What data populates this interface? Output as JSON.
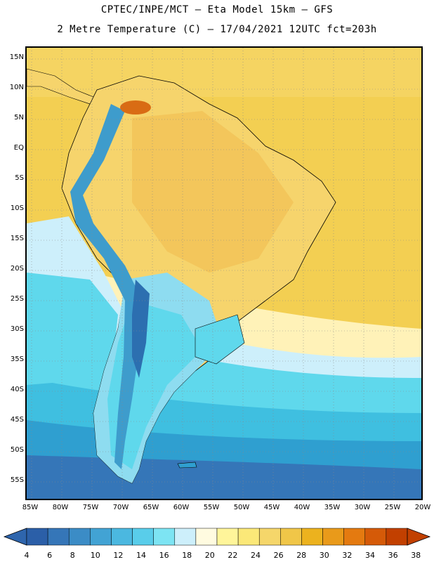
{
  "header": {
    "title_line1": "CPTEC/INPE/MCT –  Eta Model 15km – GFS",
    "title_line2": "2 Metre Temperature (C) – 17/04/2021 12UTC fct=203h"
  },
  "map": {
    "lat_labels": [
      "15N",
      "10N",
      "5N",
      "EQ",
      "5S",
      "10S",
      "15S",
      "20S",
      "25S",
      "30S",
      "35S",
      "40S",
      "45S",
      "50S",
      "55S"
    ],
    "lon_labels": [
      "85W",
      "80W",
      "75W",
      "70W",
      "65W",
      "60W",
      "55W",
      "50W",
      "45W",
      "40W",
      "35W",
      "30W",
      "25W",
      "20W"
    ],
    "colors": {
      "ocean_warm": "#f3cf52",
      "ocean_hot": "#f5d66a",
      "ocean_mild": "#fff2b8",
      "ocean_cool": "#cdeffb",
      "ocean_cold1": "#5fd8ec",
      "ocean_cold2": "#3fbfe0",
      "ocean_cold3": "#2f9fd0",
      "ocean_cold4": "#3576b8",
      "land_warm": "#f6d46c",
      "land_hot": "#efb74a",
      "land_cool": "#8edcf0",
      "andes": "#3e9ccc",
      "andes_high": "#2c6fb0",
      "hotspot": "#d96c14"
    }
  },
  "colorbar": {
    "values": [
      "4",
      "6",
      "8",
      "10",
      "12",
      "14",
      "16",
      "18",
      "20",
      "22",
      "24",
      "26",
      "28",
      "30",
      "32",
      "34",
      "36",
      "38"
    ],
    "colors": [
      "#2b5fa8",
      "#3576b8",
      "#3b8cc6",
      "#42a3d4",
      "#4bb8e0",
      "#59cdea",
      "#7de4f3",
      "#cdeffb",
      "#fffbe0",
      "#fff59a",
      "#fbe878",
      "#f5d66a",
      "#f0c648",
      "#ecb21e",
      "#e99a1a",
      "#e47a10",
      "#d55a08",
      "#c24000"
    ],
    "left_arrow_color": "#2e65ad",
    "right_arrow_color": "#c24000"
  }
}
